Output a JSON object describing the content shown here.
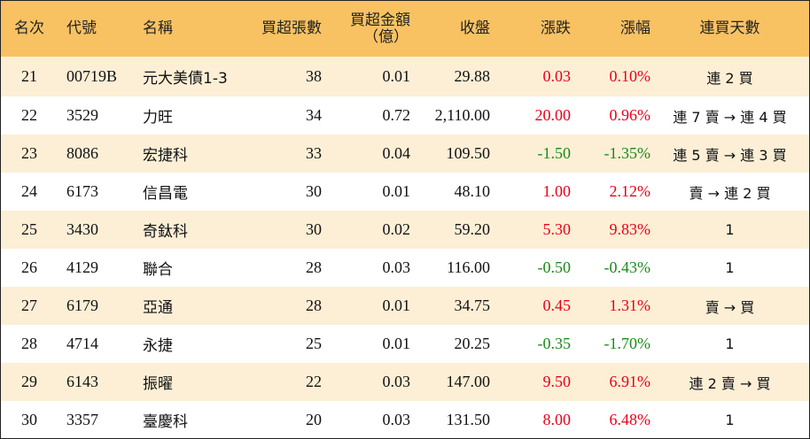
{
  "table": {
    "headers": {
      "rank": "名次",
      "code": "代號",
      "name": "名稱",
      "net_buy_lots": "買超張數",
      "net_buy_amount_line1": "買超金額",
      "net_buy_amount_line2": "（億）",
      "close": "收盤",
      "change": "漲跌",
      "change_pct": "漲幅",
      "streak": "連買天數"
    },
    "rows": [
      {
        "rank": "21",
        "code": "00719B",
        "name": "元大美債1-3",
        "lots": "38",
        "amount": "0.01",
        "close": "29.88",
        "change": "0.03",
        "pct": "0.10%",
        "dir": "up",
        "streak": "連 2 買"
      },
      {
        "rank": "22",
        "code": "3529",
        "name": "力旺",
        "lots": "34",
        "amount": "0.72",
        "close": "2,110.00",
        "change": "20.00",
        "pct": "0.96%",
        "dir": "up",
        "streak": "連 7 賣 → 連 4 買"
      },
      {
        "rank": "23",
        "code": "8086",
        "name": "宏捷科",
        "lots": "33",
        "amount": "0.04",
        "close": "109.50",
        "change": "-1.50",
        "pct": "-1.35%",
        "dir": "down",
        "streak": "連 5 賣 → 連 3 買"
      },
      {
        "rank": "24",
        "code": "6173",
        "name": "信昌電",
        "lots": "30",
        "amount": "0.01",
        "close": "48.10",
        "change": "1.00",
        "pct": "2.12%",
        "dir": "up",
        "streak": "賣 → 連 2 買"
      },
      {
        "rank": "25",
        "code": "3430",
        "name": "奇鈦科",
        "lots": "30",
        "amount": "0.02",
        "close": "59.20",
        "change": "5.30",
        "pct": "9.83%",
        "dir": "up",
        "streak": "1"
      },
      {
        "rank": "26",
        "code": "4129",
        "name": "聯合",
        "lots": "28",
        "amount": "0.03",
        "close": "116.00",
        "change": "-0.50",
        "pct": "-0.43%",
        "dir": "down",
        "streak": "1"
      },
      {
        "rank": "27",
        "code": "6179",
        "name": "亞通",
        "lots": "28",
        "amount": "0.01",
        "close": "34.75",
        "change": "0.45",
        "pct": "1.31%",
        "dir": "up",
        "streak": "賣 → 買"
      },
      {
        "rank": "28",
        "code": "4714",
        "name": "永捷",
        "lots": "25",
        "amount": "0.01",
        "close": "20.25",
        "change": "-0.35",
        "pct": "-1.70%",
        "dir": "down",
        "streak": "1"
      },
      {
        "rank": "29",
        "code": "6143",
        "name": "振曜",
        "lots": "22",
        "amount": "0.03",
        "close": "147.00",
        "change": "9.50",
        "pct": "6.91%",
        "dir": "up",
        "streak": "連 2 賣 → 買"
      },
      {
        "rank": "30",
        "code": "3357",
        "name": "臺慶科",
        "lots": "20",
        "amount": "0.03",
        "close": "131.50",
        "change": "8.00",
        "pct": "6.48%",
        "dir": "up",
        "streak": "1"
      }
    ]
  },
  "colors": {
    "header_bg": "#f8c263",
    "stripe_bg": "#fcefd6",
    "up": "#e8001a",
    "down": "#1a8a1a"
  }
}
